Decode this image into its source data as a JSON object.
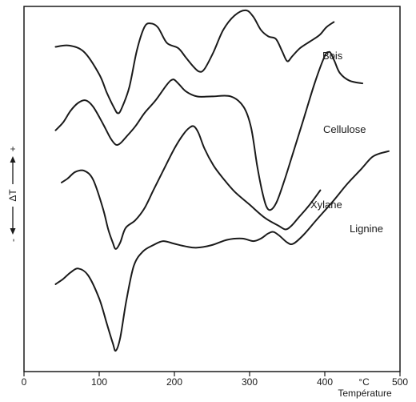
{
  "chart_data": {
    "type": "line",
    "xlabel": "Température",
    "x_unit": "°C",
    "ylabel": "ΔT",
    "y_neg_sign": "-",
    "y_pos_sign": "+",
    "xlim": [
      0,
      500
    ],
    "xticks": [
      0,
      100,
      200,
      300,
      400,
      500
    ],
    "grid": false,
    "legend": "labels placed next to curves",
    "series": [
      {
        "name": "Bois",
        "x": [
          42,
          60,
          80,
          100,
          110,
          120,
          125,
          130,
          140,
          150,
          160,
          168,
          178,
          190,
          205,
          215,
          225,
          233,
          240,
          252,
          265,
          280,
          295,
          305,
          315,
          325,
          335,
          343,
          350,
          357,
          367,
          380,
          393,
          402,
          412
        ],
        "y": [
          -3.1,
          -3.0,
          -3.5,
          -5.2,
          -6.6,
          -7.8,
          -8.2,
          -7.8,
          -6.2,
          -3.4,
          -1.6,
          -1.3,
          -1.6,
          -2.8,
          -3.2,
          -3.9,
          -4.6,
          -5.0,
          -4.8,
          -3.5,
          -1.8,
          -0.7,
          -0.3,
          -0.8,
          -1.8,
          -2.3,
          -2.5,
          -3.4,
          -4.2,
          -3.8,
          -3.2,
          -2.7,
          -2.2,
          -1.6,
          -1.2
        ]
      },
      {
        "name": "Cellulose",
        "x": [
          42,
          52,
          62,
          72,
          82,
          92,
          105,
          115,
          122,
          128,
          136,
          148,
          160,
          175,
          190,
          198,
          205,
          215,
          230,
          250,
          275,
          292,
          302,
          310,
          316,
          322,
          328,
          336,
          346,
          358,
          372,
          387,
          400,
          405,
          408,
          413,
          420,
          433,
          450
        ],
        "y": [
          -9.5,
          -8.9,
          -8.0,
          -7.4,
          -7.2,
          -7.7,
          -9.0,
          -10.1,
          -10.6,
          -10.5,
          -10.0,
          -9.2,
          -8.2,
          -7.2,
          -6.0,
          -5.6,
          -5.9,
          -6.5,
          -6.9,
          -6.9,
          -6.9,
          -7.7,
          -9.3,
          -12.2,
          -14.0,
          -15.3,
          -15.6,
          -15.0,
          -13.4,
          -11.2,
          -8.6,
          -5.8,
          -3.8,
          -3.5,
          -3.6,
          -4.2,
          -5.1,
          -5.7,
          -5.9
        ]
      },
      {
        "name": "Xylane",
        "x": [
          50,
          58,
          68,
          80,
          92,
          105,
          112,
          118,
          122,
          128,
          135,
          148,
          160,
          172,
          185,
          200,
          212,
          220,
          226,
          232,
          240,
          252,
          265,
          280,
          300,
          320,
          338,
          348,
          356,
          365,
          380,
          394
        ],
        "y": [
          -13.5,
          -13.2,
          -12.7,
          -12.6,
          -13.3,
          -15.5,
          -17.1,
          -18.1,
          -18.6,
          -18.1,
          -17.0,
          -16.4,
          -15.5,
          -14.1,
          -12.6,
          -10.9,
          -9.8,
          -9.3,
          -9.2,
          -9.7,
          -10.9,
          -12.2,
          -13.2,
          -14.2,
          -15.2,
          -16.2,
          -16.8,
          -17.1,
          -16.8,
          -16.2,
          -15.2,
          -14.1
        ]
      },
      {
        "name": "Lignine",
        "x": [
          42,
          52,
          62,
          72,
          85,
          100,
          110,
          118,
          122,
          128,
          136,
          146,
          158,
          172,
          185,
          200,
          215,
          230,
          250,
          270,
          290,
          305,
          315,
          325,
          332,
          340,
          350,
          358,
          372,
          390,
          410,
          430,
          448,
          462,
          472,
          485
        ],
        "y": [
          -21.3,
          -20.9,
          -20.4,
          -20.1,
          -20.6,
          -22.4,
          -24.3,
          -25.8,
          -26.4,
          -25.4,
          -22.6,
          -19.9,
          -18.8,
          -18.3,
          -18.0,
          -18.2,
          -18.4,
          -18.5,
          -18.3,
          -17.9,
          -17.8,
          -18.0,
          -17.8,
          -17.4,
          -17.3,
          -17.6,
          -18.1,
          -18.2,
          -17.5,
          -16.3,
          -15.0,
          -13.6,
          -12.5,
          -11.6,
          -11.3,
          -11.1
        ]
      }
    ]
  }
}
